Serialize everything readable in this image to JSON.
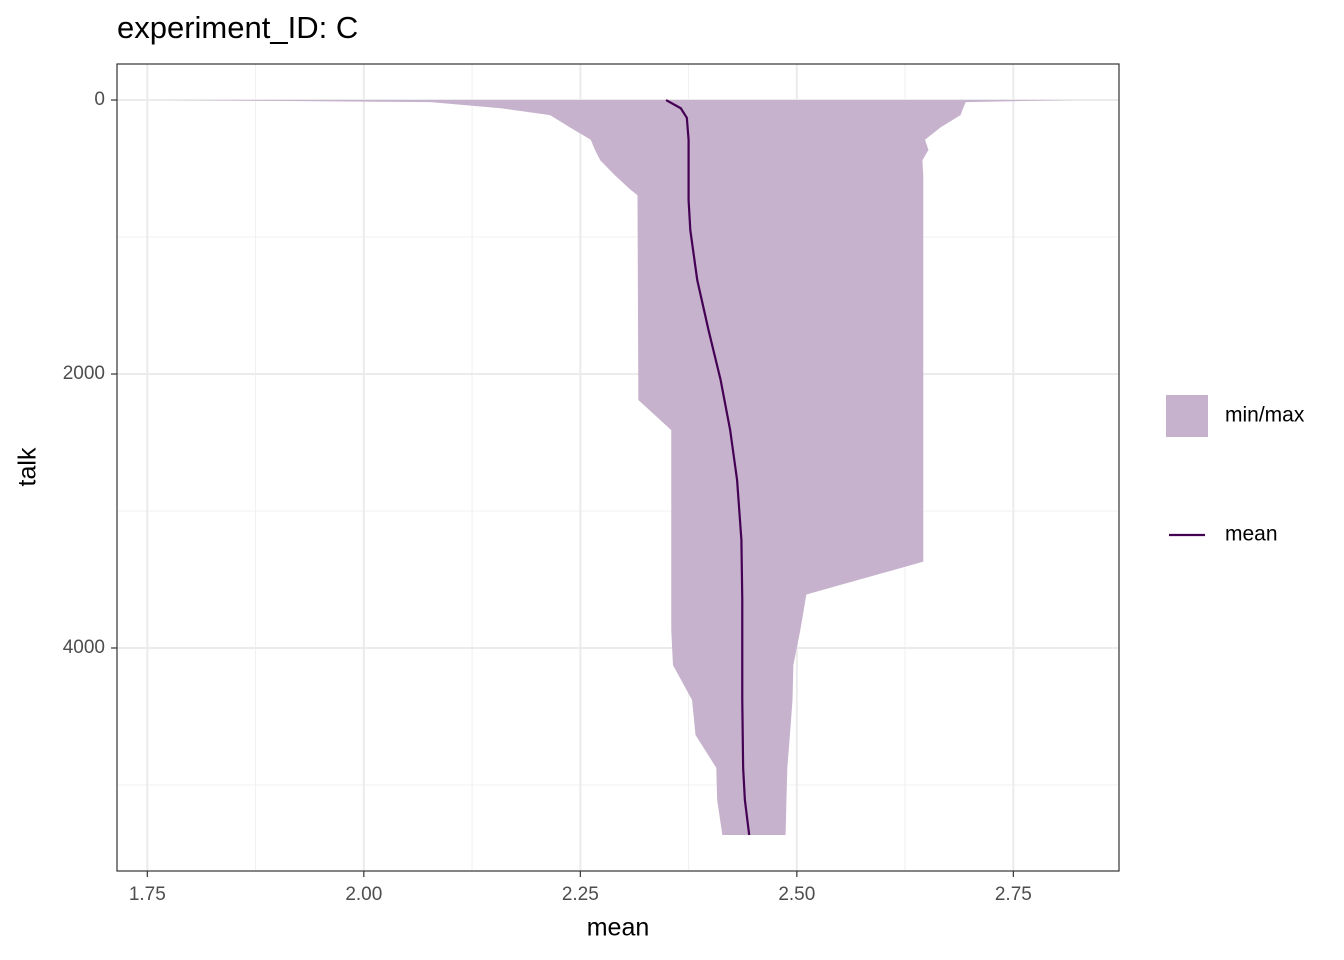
{
  "chart_data": {
    "type": "ribbon-line",
    "title": "experiment_ID: C",
    "x_label": "mean",
    "y_label": "talk",
    "xlim": [
      1.715,
      2.872
    ],
    "xticks": [
      1.75,
      {
        "value": 2,
        "label": "2.00"
      },
      2.25,
      {
        "value": 2.5,
        "label": "2.50"
      },
      2.75
    ],
    "xminor": [
      1.875,
      2.125,
      2.375,
      2.625
    ],
    "ylim": [
      -263,
      5628
    ],
    "y_reversed": true,
    "yticks": [
      0,
      2000,
      4000
    ],
    "yminor": [
      1000,
      3000,
      5000
    ],
    "grid": true,
    "legend": "right",
    "series": [
      {
        "name": "min/max",
        "color": "#c6b2cc",
        "talk": [
          0,
          15,
          60,
          110,
          200,
          290,
          365,
          440,
          550,
          655,
          695,
          2190,
          2410,
          3370,
          3610,
          3870,
          4125,
          4380,
          4635,
          4875,
          5110,
          5365
        ],
        "min": [
          1.774,
          2.077,
          2.158,
          2.215,
          2.238,
          2.262,
          2.267,
          2.273,
          2.29,
          2.308,
          2.316,
          2.317,
          2.355,
          2.355,
          2.355,
          2.355,
          2.357,
          2.379,
          2.383,
          2.407,
          2.408,
          2.414
        ],
        "max": [
          2.822,
          2.695,
          2.692,
          2.689,
          2.666,
          2.648,
          2.652,
          2.645,
          2.646,
          2.646,
          2.646,
          2.646,
          2.646,
          2.646,
          2.511,
          2.504,
          2.496,
          2.495,
          2.492,
          2.489,
          2.488,
          2.487
        ]
      },
      {
        "name": "mean",
        "color": "#440154",
        "talk": [
          0,
          60,
          130,
          290,
          730,
          950,
          1314,
          1679,
          2044,
          2409,
          2774,
          3212,
          3650,
          4380,
          4876,
          5109,
          5365
        ],
        "mean": [
          2.349,
          2.366,
          2.373,
          2.375,
          2.375,
          2.377,
          2.385,
          2.398,
          2.412,
          2.423,
          2.431,
          2.436,
          2.437,
          2.437,
          2.438,
          2.44,
          2.445
        ]
      }
    ]
  }
}
